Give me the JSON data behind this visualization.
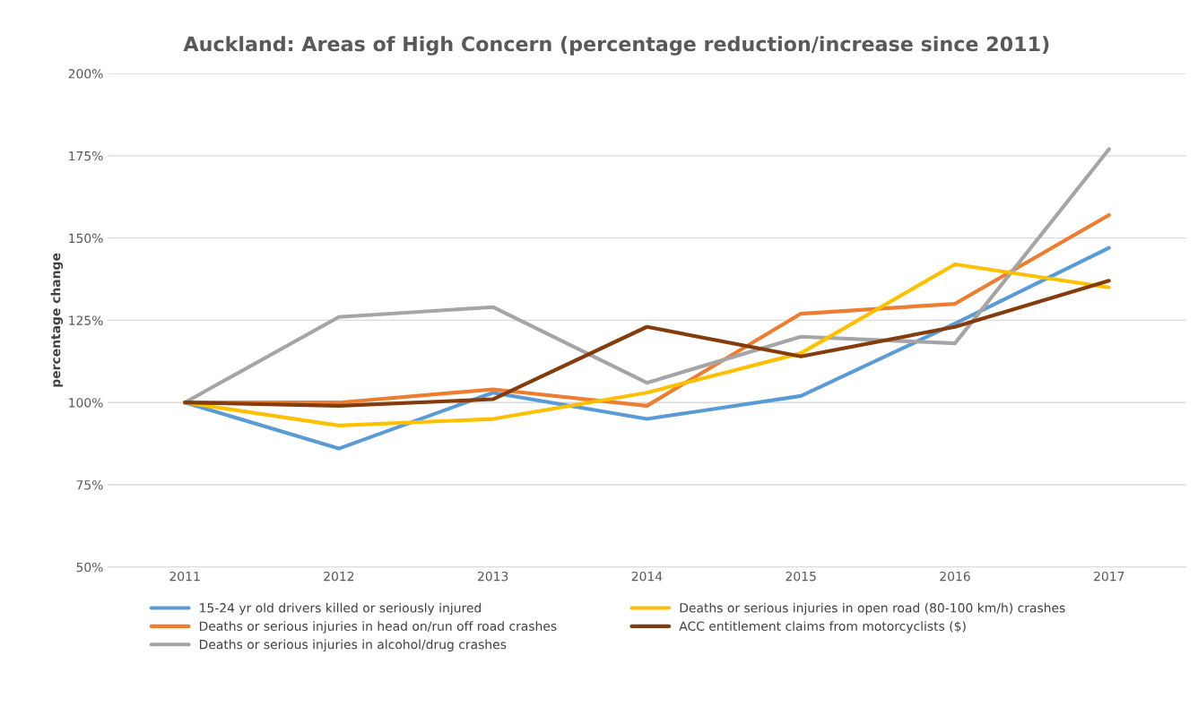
{
  "chart_data": {
    "type": "line",
    "title": "Auckland: Areas of High Concern (percentage reduction/increase since 2011)",
    "ylabel": "percentage change",
    "categories": [
      "2011",
      "2012",
      "2013",
      "2014",
      "2015",
      "2016",
      "2017"
    ],
    "series": [
      {
        "name": "15-24 yr old drivers killed or seriously injured",
        "color": "#5b9bd5",
        "values": [
          100,
          86,
          103,
          95,
          102,
          124,
          147
        ]
      },
      {
        "name": "Deaths or serious injuries in head on/run off road crashes",
        "color": "#ed7d31",
        "values": [
          100,
          100,
          104,
          99,
          127,
          130,
          157
        ]
      },
      {
        "name": "Deaths or serious injuries in alcohol/drug crashes",
        "color": "#a5a5a5",
        "values": [
          100,
          126,
          129,
          106,
          120,
          118,
          177
        ]
      },
      {
        "name": "Deaths or serious injuries in open road (80-100 km/h) crashes",
        "color": "#ffc000",
        "values": [
          100,
          93,
          95,
          103,
          115,
          142,
          135
        ]
      },
      {
        "name": "ACC entitlement claims from motorcyclists ($)",
        "color": "#843c0c",
        "values": [
          100,
          99,
          101,
          123,
          114,
          123,
          137
        ]
      }
    ],
    "ylim": [
      50,
      200
    ],
    "yticks": [
      {
        "value": 50,
        "label": "50%"
      },
      {
        "value": 75,
        "label": "75%"
      },
      {
        "value": 100,
        "label": "100%"
      },
      {
        "value": 125,
        "label": "125%"
      },
      {
        "value": 150,
        "label": "150%"
      },
      {
        "value": 175,
        "label": "175%"
      },
      {
        "value": 200,
        "label": "200%"
      }
    ],
    "grid": "y",
    "legend": "bottom",
    "marker": "none",
    "line_style": "solid"
  }
}
